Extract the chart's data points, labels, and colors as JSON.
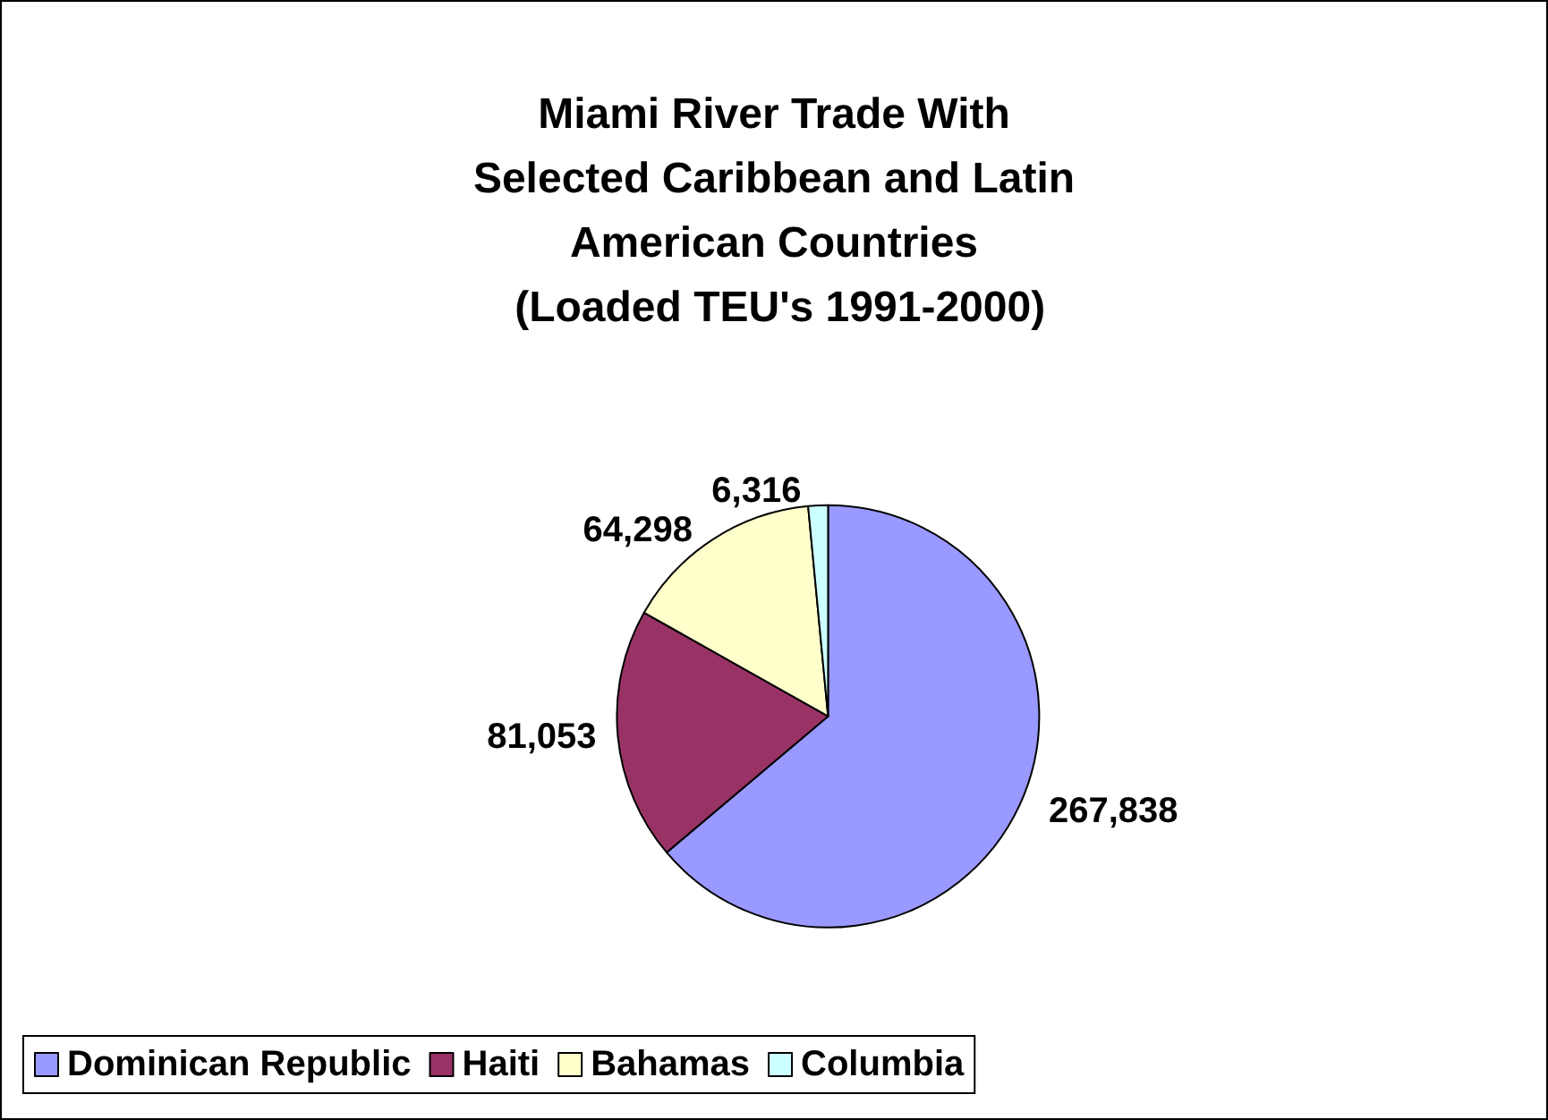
{
  "chart_data": {
    "type": "pie",
    "title": "Miami River Trade With\nSelected Caribbean and Latin\nAmerican Countries\n (Loaded TEU's 1991-2000)",
    "categories": [
      "Dominican Republic",
      "Haiti",
      "Bahamas",
      "Columbia"
    ],
    "values": [
      267838,
      81053,
      64298,
      6316
    ],
    "colors": [
      "#9999ff",
      "#993366",
      "#ffffcc",
      "#ccffff"
    ],
    "value_labels": [
      "267,838",
      "81,053",
      "64,298",
      "6,316"
    ],
    "legend": "bottom"
  }
}
